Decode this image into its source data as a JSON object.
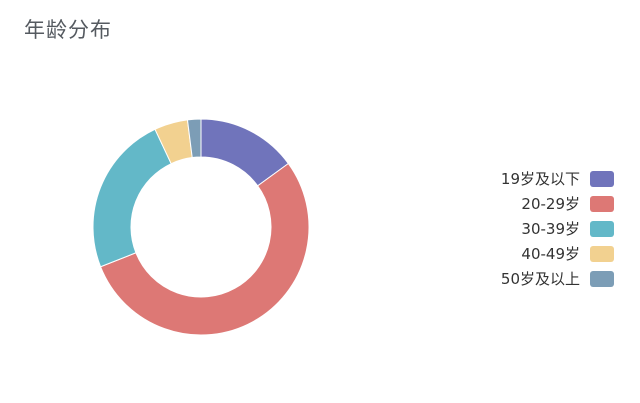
{
  "chart_data": {
    "type": "pie",
    "title": "年龄分布",
    "categories": [
      "19岁及以下",
      "20-29岁",
      "30-39岁",
      "40-49岁",
      "50岁及以上"
    ],
    "values": [
      15,
      54,
      24,
      5,
      2
    ],
    "colors": [
      "#7074bb",
      "#dd7875",
      "#63b8c8",
      "#f2d190",
      "#7c9db6"
    ],
    "legend_position": "right"
  }
}
